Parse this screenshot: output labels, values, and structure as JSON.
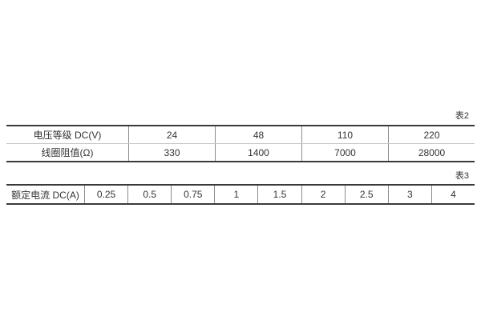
{
  "page": {
    "background": "#ffffff"
  },
  "colors": {
    "heavy_border": "#3a3a3a",
    "vertical_divider": "#8c8c8c",
    "horizontal_divider": "#c6c6c6",
    "text": "#333333"
  },
  "table2": {
    "caption": "表2",
    "rows": [
      {
        "label": "电压等级 DC(V)",
        "values": [
          "24",
          "48",
          "110",
          "220"
        ]
      },
      {
        "label": "线圈阻值(Ω)",
        "values": [
          "330",
          "1400",
          "7000",
          "28000"
        ]
      }
    ]
  },
  "table3": {
    "caption": "表3",
    "label": "额定电流 DC(A)",
    "values": [
      "0.25",
      "0.5",
      "0.75",
      "1",
      "1.5",
      "2",
      "2.5",
      "3",
      "4"
    ]
  }
}
